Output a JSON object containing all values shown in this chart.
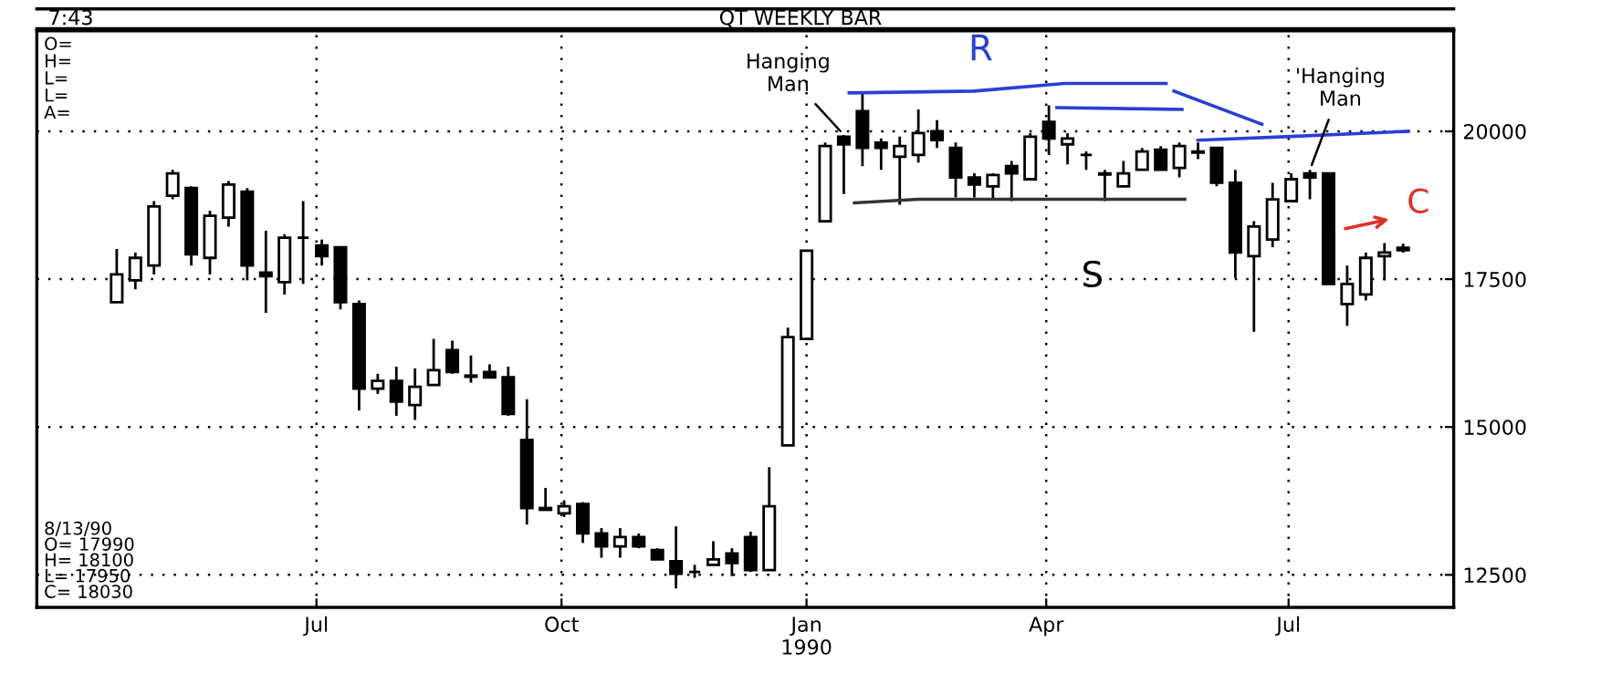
{
  "chart_data": {
    "type": "candlestick",
    "title": "QT WEEKLY BAR",
    "xlim": [
      "1989-03-18",
      "1990-09-01"
    ],
    "xticks": [
      {
        "value": "1989-07-01",
        "label": "Jul"
      },
      {
        "value": "1989-10-01",
        "label": "Oct"
      },
      {
        "value": "1990-01-01",
        "label": "Jan\n1990"
      },
      {
        "value": "1990-04-01",
        "label": "Apr"
      },
      {
        "value": "1990-07-01",
        "label": "Jul"
      }
    ],
    "ylim": [
      11950,
      21700
    ],
    "yticks": [
      12500,
      15000,
      17500,
      20000
    ],
    "grid": true,
    "series": [
      {
        "color": "#000000",
        "x": [
          "1989-04-17",
          "1989-04-24",
          "1989-05-01",
          "1989-05-08",
          "1989-05-15",
          "1989-05-22",
          "1989-05-29",
          "1989-06-05",
          "1989-06-12",
          "1989-06-19",
          "1989-06-26",
          "1989-07-03",
          "1989-07-10",
          "1989-07-17",
          "1989-07-24",
          "1989-07-31",
          "1989-08-07",
          "1989-08-14",
          "1989-08-21",
          "1989-08-28",
          "1989-09-04",
          "1989-09-11",
          "1989-09-18",
          "1989-09-25",
          "1989-10-02",
          "1989-10-09",
          "1989-10-16",
          "1989-10-23",
          "1989-10-30",
          "1989-11-06",
          "1989-11-13",
          "1989-11-20",
          "1989-11-27",
          "1989-12-04",
          "1989-12-11",
          "1989-12-18",
          "1989-12-25",
          "1990-01-01",
          "1990-01-08",
          "1990-01-15",
          "1990-01-22",
          "1990-01-29",
          "1990-02-05",
          "1990-02-12",
          "1990-02-19",
          "1990-02-26",
          "1990-03-05",
          "1990-03-12",
          "1990-03-19",
          "1990-03-26",
          "1990-04-02",
          "1990-04-09",
          "1990-04-16",
          "1990-04-23",
          "1990-04-30",
          "1990-05-07",
          "1990-05-14",
          "1990-05-21",
          "1990-05-28",
          "1990-06-04",
          "1990-06-11",
          "1990-06-18",
          "1990-06-25",
          "1990-07-02",
          "1990-07-09",
          "1990-07-16",
          "1990-07-23",
          "1990-07-30",
          "1990-08-06",
          "1990-08-13"
        ],
        "ohlc": [
          [
            17110,
            18010,
            17110,
            17580
          ],
          [
            17480,
            17950,
            17330,
            17860
          ],
          [
            17730,
            18820,
            17580,
            18730
          ],
          [
            18910,
            19350,
            18850,
            19290
          ],
          [
            19040,
            19070,
            17730,
            17920
          ],
          [
            17860,
            18660,
            17580,
            18570
          ],
          [
            18540,
            19160,
            18390,
            19100
          ],
          [
            18980,
            19040,
            17480,
            17730
          ],
          [
            17610,
            18320,
            16930,
            17550
          ],
          [
            17450,
            18260,
            17240,
            18200
          ],
          [
            18200,
            18820,
            17420,
            18200
          ],
          [
            18070,
            18170,
            17730,
            17890
          ],
          [
            18040,
            18040,
            16990,
            17110
          ],
          [
            17080,
            17140,
            15280,
            15650
          ],
          [
            15650,
            15900,
            15560,
            15780
          ],
          [
            15780,
            16020,
            15190,
            15430
          ],
          [
            15370,
            15990,
            15120,
            15680
          ],
          [
            15710,
            16490,
            15710,
            15960
          ],
          [
            16300,
            16460,
            15900,
            15930
          ],
          [
            15870,
            16210,
            15750,
            15850
          ],
          [
            15930,
            16060,
            15840,
            15840
          ],
          [
            15840,
            16020,
            15190,
            15220
          ],
          [
            14780,
            15470,
            13350,
            13630
          ],
          [
            13630,
            13970,
            13600,
            13600
          ],
          [
            13540,
            13760,
            13480,
            13660
          ],
          [
            13700,
            13730,
            13040,
            13200
          ],
          [
            13200,
            13290,
            12790,
            12980
          ],
          [
            12980,
            13290,
            12790,
            13140
          ],
          [
            13140,
            13200,
            12950,
            12980
          ],
          [
            12920,
            12950,
            12760,
            12760
          ],
          [
            12730,
            13320,
            12270,
            12520
          ],
          [
            12550,
            12670,
            12450,
            12550
          ],
          [
            12670,
            13070,
            12670,
            12760
          ],
          [
            12860,
            12950,
            12480,
            12700
          ],
          [
            13140,
            13230,
            12550,
            12580
          ],
          [
            12580,
            14320,
            12580,
            13660
          ],
          [
            14690,
            16680,
            14690,
            16520
          ],
          [
            16490,
            17980,
            16490,
            17980
          ],
          [
            18480,
            19810,
            18480,
            19750
          ],
          [
            19910,
            19940,
            18940,
            19780
          ],
          [
            20340,
            20650,
            19410,
            19720
          ],
          [
            19810,
            19880,
            19350,
            19720
          ],
          [
            19570,
            19910,
            18760,
            19750
          ],
          [
            19600,
            20370,
            19470,
            19970
          ],
          [
            20000,
            20190,
            19720,
            19850
          ],
          [
            19720,
            19810,
            18880,
            19220
          ],
          [
            19220,
            19290,
            18880,
            19100
          ],
          [
            19070,
            19290,
            18850,
            19260
          ],
          [
            19410,
            19500,
            18820,
            19290
          ],
          [
            19190,
            19970,
            19190,
            19910
          ],
          [
            20160,
            20440,
            19600,
            19880
          ],
          [
            19780,
            19970,
            19440,
            19880
          ],
          [
            19600,
            19660,
            19350,
            19600
          ],
          [
            19270,
            19350,
            18820,
            19290
          ],
          [
            19070,
            19500,
            19070,
            19290
          ],
          [
            19350,
            19720,
            19350,
            19660
          ],
          [
            19690,
            19750,
            19350,
            19350
          ],
          [
            19380,
            19810,
            19220,
            19750
          ],
          [
            19660,
            19810,
            19530,
            19640
          ],
          [
            19720,
            19720,
            19070,
            19130
          ],
          [
            19130,
            19350,
            17520,
            17950
          ],
          [
            17890,
            18480,
            16610,
            18390
          ],
          [
            18170,
            19130,
            18040,
            18850
          ],
          [
            18820,
            19290,
            18820,
            19190
          ],
          [
            19290,
            19350,
            18850,
            19220
          ],
          [
            19290,
            19290,
            17420,
            17420
          ],
          [
            17080,
            17730,
            16710,
            17420
          ],
          [
            17240,
            17950,
            17140,
            17860
          ],
          [
            17890,
            18110,
            17480,
            17950
          ],
          [
            17990,
            18100,
            17950,
            18030
          ]
        ]
      },
      {
        "type": "line",
        "color": "#2a3fd6",
        "x": [
          "1990-01-17",
          "1990-03-05",
          "1990-04-08",
          "1990-05-16"
        ],
        "values": [
          20650,
          20680,
          20810,
          20810
        ]
      },
      {
        "type": "line",
        "color": "#2a3fd6",
        "x": [
          "1990-04-05",
          "1990-05-22"
        ],
        "values": [
          20400,
          20370
        ]
      },
      {
        "type": "line",
        "color": "#2a3fd6",
        "x": [
          "1990-05-19",
          "1990-06-21"
        ],
        "values": [
          20680,
          20120
        ]
      },
      {
        "type": "line",
        "color": "#2a3fd6",
        "x": [
          "1990-05-28",
          "1990-06-30",
          "1990-08-15"
        ],
        "values": [
          19850,
          19910,
          20000
        ]
      },
      {
        "type": "line",
        "color": "#333333",
        "x": [
          "1990-01-19",
          "1990-02-12",
          "1990-05-23"
        ],
        "values": [
          18790,
          18850,
          18850
        ]
      }
    ],
    "annotations": [
      "7:43",
      "O=\nH=\nL=\nL=\nA=",
      "8/13/90\nO= 17990\nH= 18100\nL= 17950\nC= 18030",
      {
        "text": "Hanging\nMan",
        "x": "1990-01-15",
        "y": 19940
      },
      {
        "text": "'Hanging\nMan",
        "x": "1990-07-09",
        "y": 19350
      },
      {
        "text": "R",
        "x": "1990-02-24",
        "y": 20680
      },
      {
        "text": "S",
        "x": "1990-04-05",
        "y": 18820
      },
      "C"
    ]
  }
}
